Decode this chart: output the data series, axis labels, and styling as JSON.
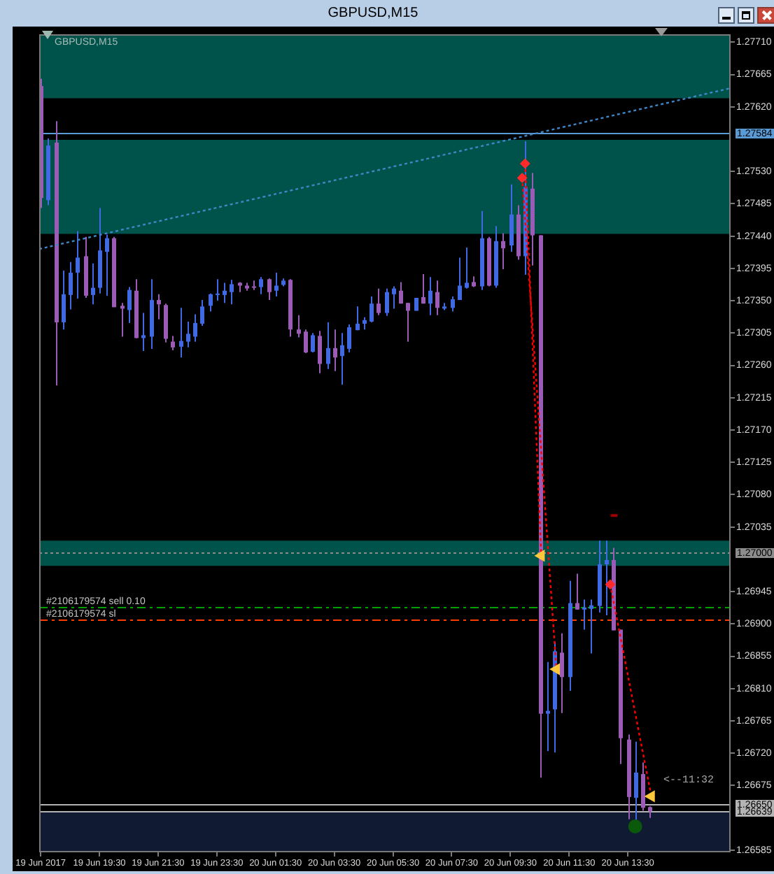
{
  "chart_data": {
    "type": "candlestick",
    "title": "GBPUSD,M15",
    "subtitle": "GBPUSD,M15",
    "x": [
      "2017-06-19T17:30",
      "2017-06-19T17:45",
      "2017-06-19T18:00",
      "2017-06-19T18:15",
      "2017-06-19T18:30",
      "2017-06-19T18:45",
      "2017-06-19T19:00",
      "2017-06-19T19:15",
      "2017-06-19T19:30",
      "2017-06-19T19:45",
      "2017-06-19T20:00",
      "2017-06-19T20:15",
      "2017-06-19T20:30",
      "2017-06-19T20:45",
      "2017-06-19T21:00",
      "2017-06-19T21:15",
      "2017-06-19T21:30",
      "2017-06-19T21:45",
      "2017-06-19T22:00",
      "2017-06-19T22:15",
      "2017-06-19T22:30",
      "2017-06-19T22:45",
      "2017-06-19T23:00",
      "2017-06-19T23:15",
      "2017-06-19T23:30",
      "2017-06-19T23:45",
      "2017-06-20T00:00",
      "2017-06-20T00:15",
      "2017-06-20T00:30",
      "2017-06-20T00:45",
      "2017-06-20T01:00",
      "2017-06-20T01:15",
      "2017-06-20T01:30",
      "2017-06-20T01:45",
      "2017-06-20T02:00",
      "2017-06-20T02:15",
      "2017-06-20T02:30",
      "2017-06-20T02:45",
      "2017-06-20T03:00",
      "2017-06-20T03:15",
      "2017-06-20T03:30",
      "2017-06-20T03:45",
      "2017-06-20T04:00",
      "2017-06-20T04:15",
      "2017-06-20T04:30",
      "2017-06-20T04:45",
      "2017-06-20T05:00",
      "2017-06-20T05:15",
      "2017-06-20T05:30",
      "2017-06-20T05:45",
      "2017-06-20T06:00",
      "2017-06-20T06:15",
      "2017-06-20T06:30",
      "2017-06-20T06:45",
      "2017-06-20T07:00",
      "2017-06-20T07:15",
      "2017-06-20T07:30",
      "2017-06-20T07:45",
      "2017-06-20T08:00",
      "2017-06-20T08:15",
      "2017-06-20T08:30",
      "2017-06-20T08:45",
      "2017-06-20T09:00",
      "2017-06-20T09:15",
      "2017-06-20T09:30",
      "2017-06-20T09:45",
      "2017-06-20T10:00",
      "2017-06-20T10:15",
      "2017-06-20T10:30",
      "2017-06-20T10:45",
      "2017-06-20T11:00",
      "2017-06-20T11:15",
      "2017-06-20T11:30",
      "2017-06-20T11:45",
      "2017-06-20T12:00",
      "2017-06-20T12:15",
      "2017-06-20T12:30",
      "2017-06-20T12:45",
      "2017-06-20T13:00",
      "2017-06-20T13:15",
      "2017-06-20T13:30",
      "2017-06-20T13:45",
      "2017-06-20T14:00",
      "2017-06-20T14:15"
    ],
    "ohlc": [
      [
        1.27649,
        1.27659,
        1.27479,
        1.27493
      ],
      [
        1.2749,
        1.27576,
        1.27483,
        1.27566
      ],
      [
        1.2757,
        1.276,
        1.27232,
        1.2732
      ],
      [
        1.2732,
        1.27392,
        1.2731,
        1.27359
      ],
      [
        1.27358,
        1.27404,
        1.27338,
        1.27389
      ],
      [
        1.27389,
        1.27447,
        1.27353,
        1.2741
      ],
      [
        1.27412,
        1.27439,
        1.27354,
        1.27357
      ],
      [
        1.27358,
        1.27402,
        1.27345,
        1.27368
      ],
      [
        1.27368,
        1.27479,
        1.2736,
        1.2742
      ],
      [
        1.27418,
        1.27442,
        1.27357,
        1.27437
      ],
      [
        1.27437,
        1.27439,
        1.27341,
        1.27341
      ],
      [
        1.27343,
        1.27347,
        1.273,
        1.27339
      ],
      [
        1.27337,
        1.27369,
        1.27319,
        1.27365
      ],
      [
        1.27364,
        1.2738,
        1.27298,
        1.27298
      ],
      [
        1.27298,
        1.27333,
        1.2728,
        1.27302
      ],
      [
        1.273,
        1.2738,
        1.27283,
        1.27351
      ],
      [
        1.27351,
        1.27359,
        1.27324,
        1.27345
      ],
      [
        1.27344,
        1.27346,
        1.27292,
        1.27297
      ],
      [
        1.27293,
        1.27301,
        1.27281,
        1.27285
      ],
      [
        1.27286,
        1.2734,
        1.27271,
        1.27294
      ],
      [
        1.27293,
        1.27321,
        1.27285,
        1.27304
      ],
      [
        1.273,
        1.27331,
        1.27293,
        1.27319
      ],
      [
        1.27318,
        1.27351,
        1.27315,
        1.27342
      ],
      [
        1.27343,
        1.2736,
        1.27335,
        1.27359
      ],
      [
        1.27358,
        1.2738,
        1.2735,
        1.2736
      ],
      [
        1.27358,
        1.27375,
        1.27347,
        1.27364
      ],
      [
        1.27362,
        1.27379,
        1.27345,
        1.27373
      ],
      [
        1.27375,
        1.27376,
        1.27362,
        1.27371
      ],
      [
        1.27371,
        1.27375,
        1.27364,
        1.27367
      ],
      [
        1.2737,
        1.27378,
        1.27365,
        1.27368
      ],
      [
        1.27369,
        1.27383,
        1.27359,
        1.2738
      ],
      [
        1.2738,
        1.27381,
        1.27351,
        1.27362
      ],
      [
        1.27364,
        1.27389,
        1.27356,
        1.27371
      ],
      [
        1.27372,
        1.27381,
        1.2737,
        1.27378
      ],
      [
        1.27379,
        1.2738,
        1.273,
        1.2731
      ],
      [
        1.2731,
        1.2733,
        1.27299,
        1.27304
      ],
      [
        1.27307,
        1.2731,
        1.27277,
        1.27278
      ],
      [
        1.27279,
        1.27305,
        1.27278,
        1.27302
      ],
      [
        1.27301,
        1.27308,
        1.27249,
        1.27262
      ],
      [
        1.27262,
        1.2732,
        1.27255,
        1.27284
      ],
      [
        1.27284,
        1.2731,
        1.27252,
        1.27271
      ],
      [
        1.27273,
        1.27305,
        1.27233,
        1.27288
      ],
      [
        1.27283,
        1.27317,
        1.27278,
        1.27313
      ],
      [
        1.27309,
        1.27342,
        1.27309,
        1.27318
      ],
      [
        1.27318,
        1.27327,
        1.2731,
        1.27323
      ],
      [
        1.27321,
        1.27356,
        1.2732,
        1.27346
      ],
      [
        1.27346,
        1.27367,
        1.2733,
        1.27333
      ],
      [
        1.27333,
        1.27367,
        1.27329,
        1.27362
      ],
      [
        1.27359,
        1.2737,
        1.27339,
        1.27367
      ],
      [
        1.27364,
        1.27376,
        1.27346,
        1.27346
      ],
      [
        1.27347,
        1.27347,
        1.27293,
        1.27336
      ],
      [
        1.27336,
        1.27354,
        1.27336,
        1.27354
      ],
      [
        1.27355,
        1.27387,
        1.27346,
        1.27346
      ],
      [
        1.27346,
        1.27383,
        1.2733,
        1.27364
      ],
      [
        1.27362,
        1.27378,
        1.2733,
        1.2734
      ],
      [
        1.27339,
        1.27347,
        1.27337,
        1.27342
      ],
      [
        1.2734,
        1.27356,
        1.27335,
        1.27352
      ],
      [
        1.27351,
        1.2741,
        1.27351,
        1.27371
      ],
      [
        1.27368,
        1.27424,
        1.27367,
        1.27375
      ],
      [
        1.27376,
        1.27384,
        1.27369,
        1.2737
      ],
      [
        1.2737,
        1.27475,
        1.27365,
        1.27437
      ],
      [
        1.27437,
        1.27439,
        1.2737,
        1.27371
      ],
      [
        1.27371,
        1.27454,
        1.27368,
        1.27433
      ],
      [
        1.27433,
        1.27444,
        1.27394,
        1.27423
      ],
      [
        1.27427,
        1.27512,
        1.27418,
        1.2747
      ],
      [
        1.2747,
        1.27483,
        1.27407,
        1.27412
      ],
      [
        1.27412,
        1.27572,
        1.27386,
        1.27508
      ],
      [
        1.27506,
        1.27528,
        1.27399,
        1.27441
      ],
      [
        1.27441,
        1.27441,
        1.26686,
        1.26775
      ],
      [
        1.26775,
        1.26847,
        1.26723,
        1.26779
      ],
      [
        1.26781,
        1.26875,
        1.26721,
        1.26862
      ],
      [
        1.2686,
        1.26887,
        1.26776,
        1.26826
      ],
      [
        1.26826,
        1.2696,
        1.26807,
        1.26929
      ],
      [
        1.26929,
        1.2697,
        1.2692,
        1.2692
      ],
      [
        1.2692,
        1.26934,
        1.26892,
        1.26923
      ],
      [
        1.26921,
        1.26934,
        1.26859,
        1.26926
      ],
      [
        1.26925,
        1.27016,
        1.26916,
        1.26983
      ],
      [
        1.26983,
        1.27016,
        1.26912,
        1.26989
      ],
      [
        1.26989,
        1.27006,
        1.26891,
        1.26891
      ],
      [
        1.26892,
        1.26892,
        1.26705,
        1.26741
      ],
      [
        1.26739,
        1.26746,
        1.26628,
        1.26659
      ],
      [
        1.26658,
        1.26736,
        1.26627,
        1.26693
      ],
      [
        1.26691,
        1.26707,
        1.2664,
        1.26644
      ],
      [
        1.26645,
        1.26646,
        1.2663,
        1.26639
      ]
    ],
    "colors": [
      "#9a5cb4",
      "#4169e1",
      "#9a5cb4",
      "#4169e1",
      "#4169e1",
      "#4169e1",
      "#9a5cb4",
      "#4169e1",
      "#4169e1",
      "#4169e1",
      "#9a5cb4",
      "#9a5cb4",
      "#4169e1",
      "#9a5cb4",
      "#4169e1",
      "#4169e1",
      "#9a5cb4",
      "#9a5cb4",
      "#9a5cb4",
      "#4169e1",
      "#4169e1",
      "#4169e1",
      "#4169e1",
      "#4169e1",
      "#4169e1",
      "#4169e1",
      "#4169e1",
      "#9a5cb4",
      "#9a5cb4",
      "#9a5cb4",
      "#4169e1",
      "#9a5cb4",
      "#4169e1",
      "#4169e1",
      "#9a5cb4",
      "#9a5cb4",
      "#9a5cb4",
      "#4169e1",
      "#9a5cb4",
      "#4169e1",
      "#9a5cb4",
      "#4169e1",
      "#4169e1",
      "#4169e1",
      "#4169e1",
      "#4169e1",
      "#9a5cb4",
      "#4169e1",
      "#4169e1",
      "#9a5cb4",
      "#9a5cb4",
      "#4169e1",
      "#9a5cb4",
      "#4169e1",
      "#9a5cb4",
      "#4169e1",
      "#4169e1",
      "#4169e1",
      "#4169e1",
      "#9a5cb4",
      "#4169e1",
      "#9a5cb4",
      "#4169e1",
      "#9a5cb4",
      "#4169e1",
      "#9a5cb4",
      "#4169e1",
      "#9a5cb4",
      "#9a5cb4",
      "#4169e1",
      "#4169e1",
      "#9a5cb4",
      "#4169e1",
      "#9a5cb4",
      "#4169e1",
      "#4169e1",
      "#4169e1",
      "#4169e1",
      "#9a5cb4",
      "#9a5cb4",
      "#9a5cb4",
      "#4169e1",
      "#9a5cb4",
      "#9a5cb4"
    ],
    "xlim": [
      "2017-06-19T17:27",
      "2017-06-20T17:00"
    ],
    "ylim": [
      1.26582,
      1.27721
    ],
    "xticks": [
      {
        "value": "2017-06-19T17:30",
        "label": "19 Jun 2017"
      },
      {
        "value": "2017-06-19T19:30",
        "label": "19 Jun 19:30"
      },
      {
        "value": "2017-06-19T21:30",
        "label": "19 Jun 21:30"
      },
      {
        "value": "2017-06-19T23:30",
        "label": "19 Jun 23:30"
      },
      {
        "value": "2017-06-20T01:30",
        "label": "20 Jun 01:30"
      },
      {
        "value": "2017-06-20T03:30",
        "label": "20 Jun 03:30"
      },
      {
        "value": "2017-06-20T05:30",
        "label": "20 Jun 05:30"
      },
      {
        "value": "2017-06-20T07:30",
        "label": "20 Jun 07:30"
      },
      {
        "value": "2017-06-20T09:30",
        "label": "20 Jun 09:30"
      },
      {
        "value": "2017-06-20T11:30",
        "label": "20 Jun 11:30"
      },
      {
        "value": "2017-06-20T13:30",
        "label": "20 Jun 13:30"
      }
    ],
    "yticks": [
      1.26585,
      1.26675,
      {
        "value": 1.2672,
        "label": "1.26720"
      },
      1.26765,
      {
        "value": 1.2681,
        "label": "1.26810"
      },
      1.26855,
      {
        "value": 1.269,
        "label": "1.26900"
      },
      1.26945,
      1.27035,
      {
        "value": 1.2708,
        "label": "1.27080"
      },
      1.27125,
      {
        "value": 1.2717,
        "label": "1.27170"
      },
      1.27215,
      {
        "value": 1.2726,
        "label": "1.27260"
      },
      1.27305,
      {
        "value": 1.2735,
        "label": "1.27350"
      },
      1.27395,
      {
        "value": 1.2744,
        "label": "1.27440"
      },
      1.27485,
      {
        "value": 1.2753,
        "label": "1.27530"
      },
      {
        "value": 1.2762,
        "label": "1.27620"
      },
      1.27665,
      {
        "value": 1.2771,
        "label": "1.27710"
      }
    ],
    "series": [
      {
        "type": "line",
        "x": [
          "2017-06-19T17:27",
          "2017-06-20T17:00"
        ],
        "values": [
          1.27422,
          1.27646
        ],
        "color": "#3f86c6",
        "line_style": "dotted"
      },
      {
        "type": "line",
        "x": [
          "2017-06-20T10:00",
          "2017-06-20T10:33"
        ],
        "values": [
          1.27541,
          1.26995
        ],
        "color": "#ff0000",
        "line_style": "dotted"
      },
      {
        "type": "line",
        "x": [
          "2017-06-20T09:54",
          "2017-06-20T11:04"
        ],
        "values": [
          1.27521,
          1.26837
        ],
        "color": "#ff0000",
        "line_style": "dotted"
      },
      {
        "type": "line",
        "x": [
          "2017-06-20T12:54",
          "2017-06-20T14:18"
        ],
        "values": [
          1.26955,
          1.2666
        ],
        "color": "#ff0000",
        "line_style": "dotted"
      },
      {
        "type": "line",
        "x": [
          "2017-06-20T12:55",
          "2017-06-20T13:09"
        ],
        "values": [
          1.27051,
          1.27051
        ],
        "color": "#a00000",
        "line_style": "solid"
      },
      {
        "type": "scatter",
        "x": [
          "2017-06-20T10:00",
          "2017-06-20T09:54",
          "2017-06-20T12:54"
        ],
        "values": [
          1.27541,
          1.27521,
          1.26955
        ],
        "color": "#ff2a2a",
        "marker": "diamond"
      },
      {
        "type": "scatter",
        "x": [
          "2017-06-20T10:33",
          "2017-06-20T11:04",
          "2017-06-20T14:18"
        ],
        "values": [
          1.26995,
          1.26837,
          1.2666
        ],
        "color": "#ffc83c",
        "marker": "triangle"
      },
      {
        "type": "scatter",
        "x": [
          "2017-06-20T13:45"
        ],
        "values": [
          1.26618
        ],
        "color": "#0b5a0b",
        "marker": "circle"
      }
    ],
    "ref_lines": [
      {
        "axis": "y",
        "value": 1.27584,
        "label": "1.27584",
        "color": "#5b9bd5",
        "line_style": "solid"
      },
      {
        "axis": "y",
        "value": 1.27,
        "label": "1.27000",
        "color": "#8c8c8c",
        "line_style": "dotted"
      },
      {
        "axis": "y",
        "value": 1.26923,
        "label": "#2106179574 sell 0.10",
        "color": "#00a000",
        "line_style": "dashed"
      },
      {
        "axis": "y",
        "value": 1.26906,
        "label": "#2106179574 sl",
        "color": "#ff3c00",
        "line_style": "dashed"
      },
      {
        "axis": "y",
        "value": 1.2665,
        "label": "1.26650",
        "color": "#b4b4b4",
        "line_style": "solid"
      },
      {
        "axis": "y",
        "value": 1.26639,
        "label": "1.26639",
        "color": "#b4b4b4",
        "line_style": "solid"
      }
    ],
    "bands": [
      {
        "axis": "y",
        "from": 1.27632,
        "to": 1.27721,
        "color": "#00534a"
      },
      {
        "axis": "y",
        "from": 1.27443,
        "to": 1.27574,
        "color": "#00534a"
      },
      {
        "axis": "y",
        "from": 1.26981,
        "to": 1.27016,
        "color": "#00534a"
      },
      {
        "axis": "y",
        "from": 1.26582,
        "to": 1.26639,
        "color": "#111a33"
      }
    ],
    "annotations": [
      "<--11:32"
    ]
  }
}
